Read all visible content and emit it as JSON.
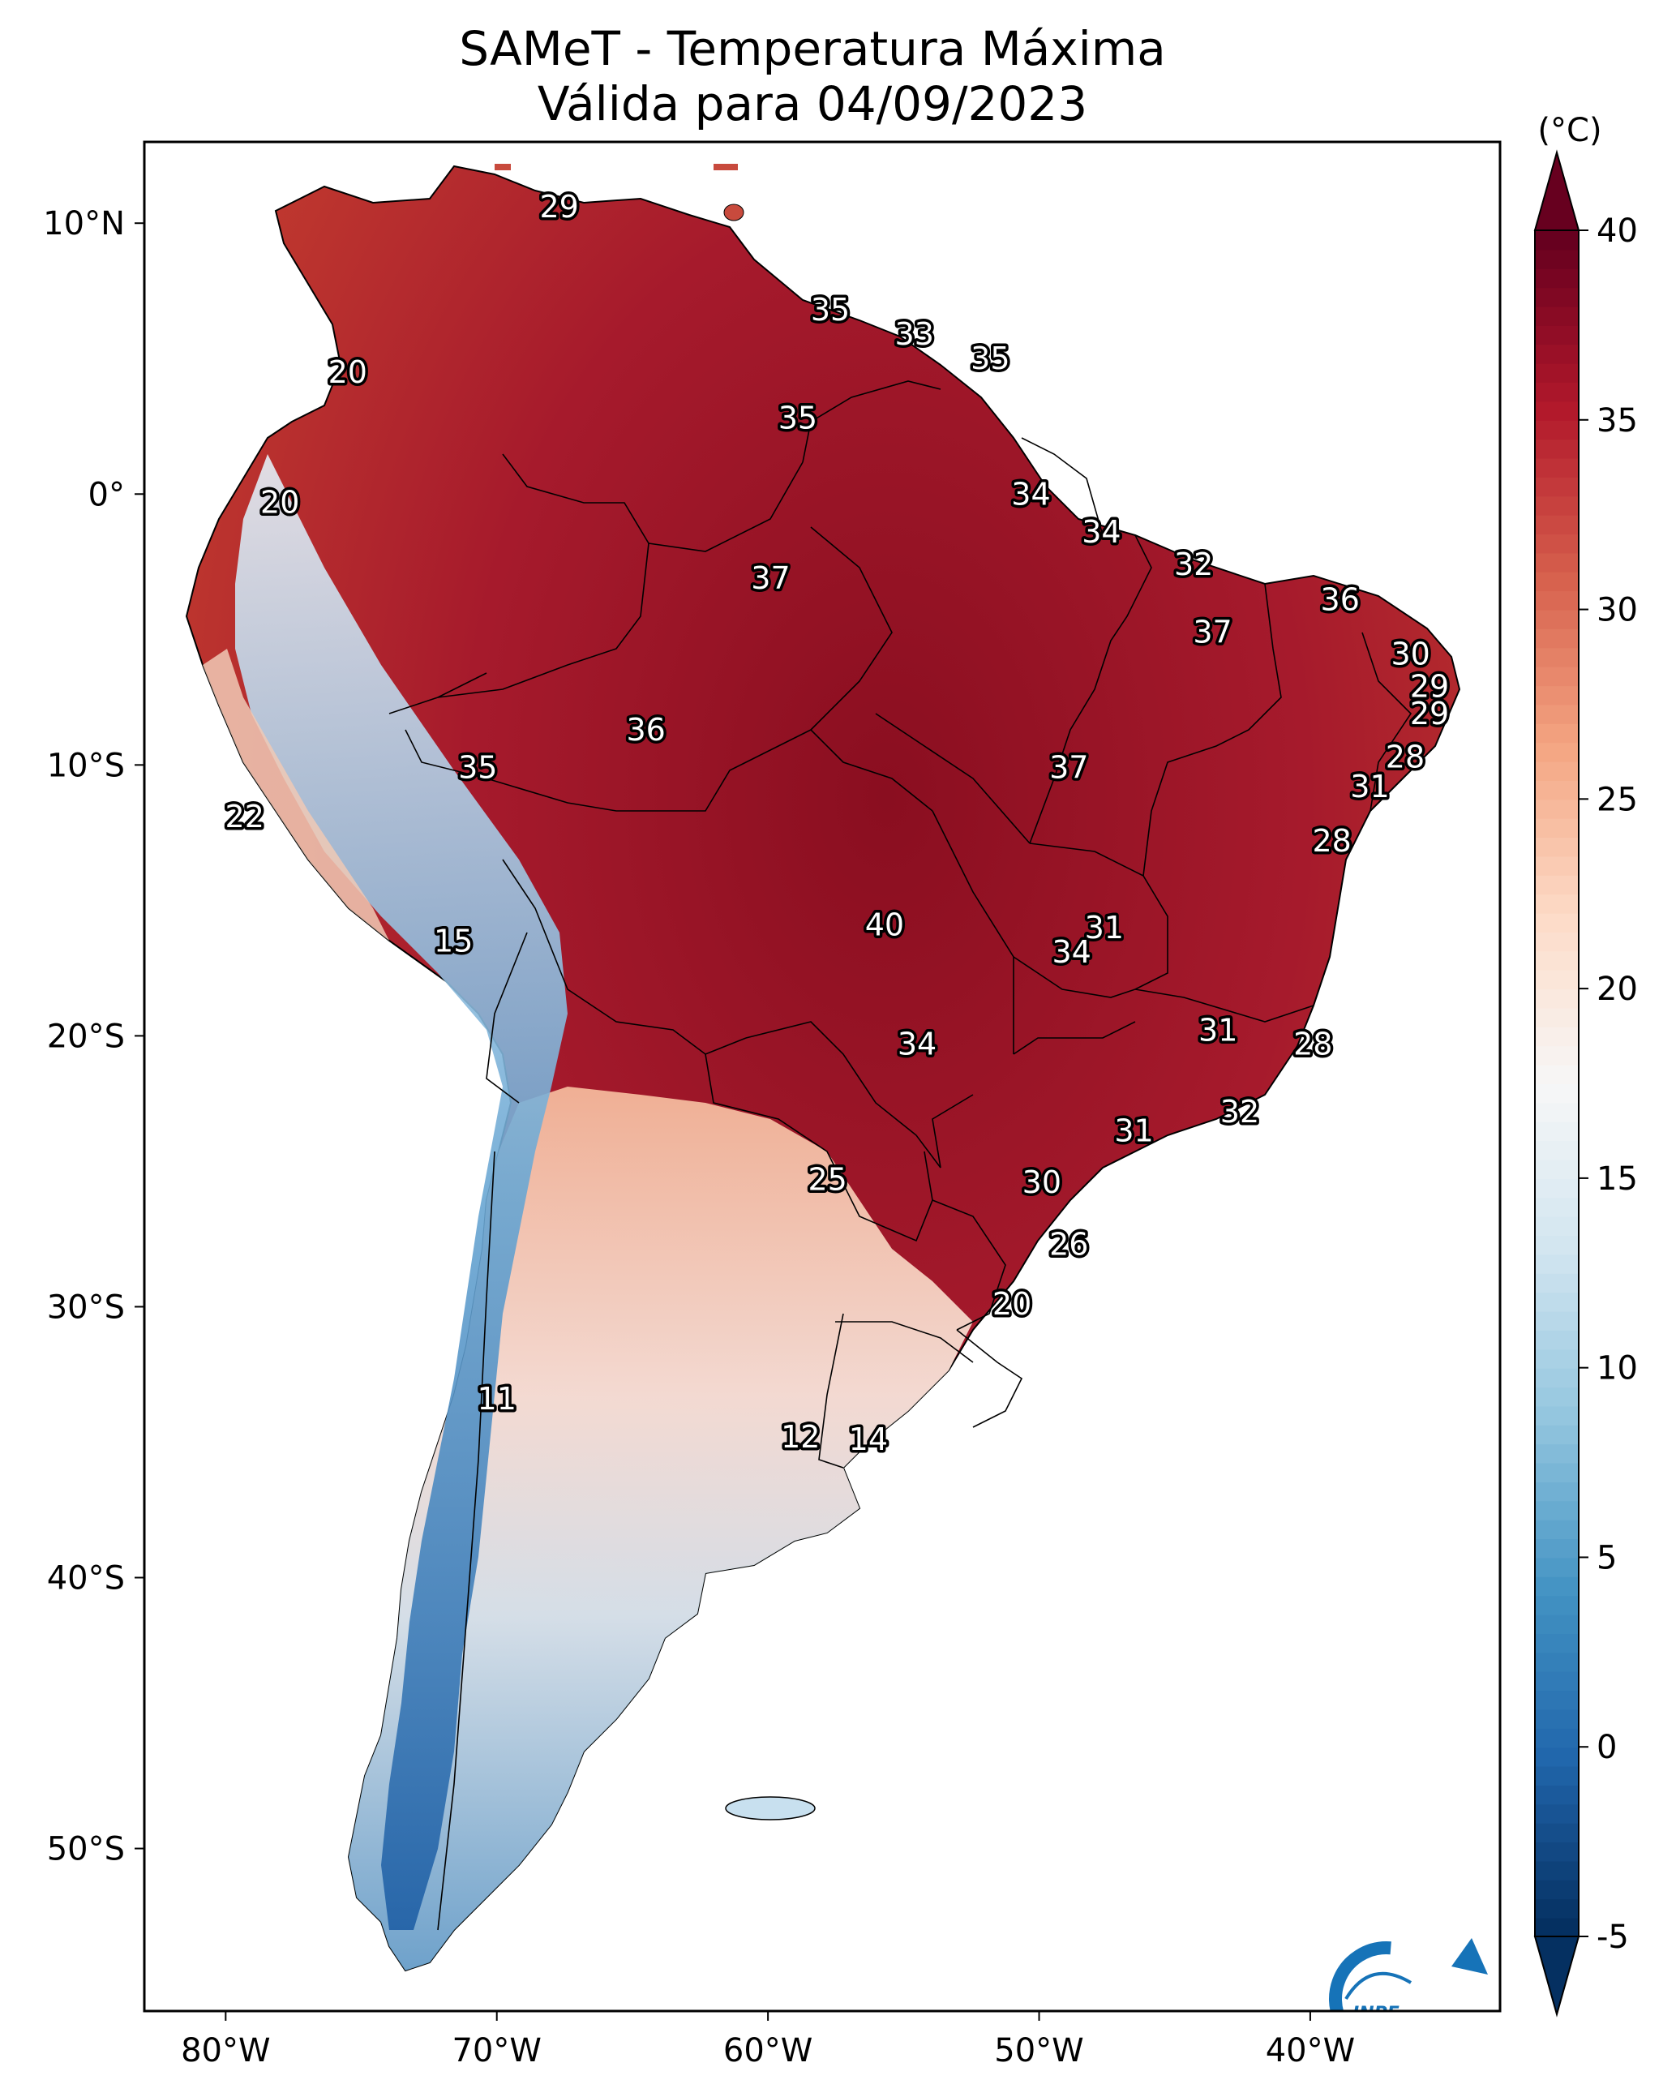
{
  "title": {
    "line1": "SAMeT - Temperatura Máxima",
    "line2": "Válida para 04/09/2023"
  },
  "map": {
    "lon_range": [
      -83,
      -33
    ],
    "lat_range": [
      -56,
      13
    ],
    "lon_ticks": [
      {
        "value": -80,
        "label": "80°W"
      },
      {
        "value": -70,
        "label": "70°W"
      },
      {
        "value": -60,
        "label": "60°W"
      },
      {
        "value": -50,
        "label": "50°W"
      },
      {
        "value": -40,
        "label": "40°W"
      }
    ],
    "lat_ticks": [
      {
        "value": 10,
        "label": "10°N"
      },
      {
        "value": 0,
        "label": "0°"
      },
      {
        "value": -10,
        "label": "10°S"
      },
      {
        "value": -20,
        "label": "20°S"
      },
      {
        "value": -30,
        "label": "30°S"
      },
      {
        "value": -40,
        "label": "40°S"
      },
      {
        "value": -50,
        "label": "50°S"
      }
    ],
    "temperature_labels": [
      {
        "lon": -67.7,
        "lat": 10.6,
        "value": "29"
      },
      {
        "lon": -75.5,
        "lat": 4.5,
        "value": "20"
      },
      {
        "lon": -78.0,
        "lat": -0.3,
        "value": "20"
      },
      {
        "lon": -57.7,
        "lat": 6.8,
        "value": "35"
      },
      {
        "lon": -54.6,
        "lat": 5.9,
        "value": "33"
      },
      {
        "lon": -51.8,
        "lat": 5.0,
        "value": "35"
      },
      {
        "lon": -58.9,
        "lat": 2.8,
        "value": "35"
      },
      {
        "lon": -50.3,
        "lat": 0.0,
        "value": "34"
      },
      {
        "lon": -47.7,
        "lat": -1.4,
        "value": "34"
      },
      {
        "lon": -44.3,
        "lat": -2.6,
        "value": "32"
      },
      {
        "lon": -38.9,
        "lat": -3.9,
        "value": "36"
      },
      {
        "lon": -59.9,
        "lat": -3.1,
        "value": "37"
      },
      {
        "lon": -43.6,
        "lat": -5.1,
        "value": "37"
      },
      {
        "lon": -36.3,
        "lat": -5.9,
        "value": "30"
      },
      {
        "lon": -35.6,
        "lat": -7.1,
        "value": "29"
      },
      {
        "lon": -35.6,
        "lat": -8.1,
        "value": "29"
      },
      {
        "lon": -36.5,
        "lat": -9.7,
        "value": "28"
      },
      {
        "lon": -37.8,
        "lat": -10.8,
        "value": "31"
      },
      {
        "lon": -39.2,
        "lat": -12.8,
        "value": "28"
      },
      {
        "lon": -64.5,
        "lat": -8.7,
        "value": "36"
      },
      {
        "lon": -70.7,
        "lat": -10.1,
        "value": "35"
      },
      {
        "lon": -48.9,
        "lat": -10.1,
        "value": "37"
      },
      {
        "lon": -79.3,
        "lat": -11.9,
        "value": "22"
      },
      {
        "lon": -71.6,
        "lat": -16.5,
        "value": "15"
      },
      {
        "lon": -55.7,
        "lat": -15.9,
        "value": "40"
      },
      {
        "lon": -47.6,
        "lat": -16.0,
        "value": "31"
      },
      {
        "lon": -48.8,
        "lat": -16.9,
        "value": "34"
      },
      {
        "lon": -43.4,
        "lat": -19.8,
        "value": "31"
      },
      {
        "lon": -54.5,
        "lat": -20.3,
        "value": "34"
      },
      {
        "lon": -39.9,
        "lat": -20.3,
        "value": "28"
      },
      {
        "lon": -42.6,
        "lat": -22.8,
        "value": "32"
      },
      {
        "lon": -46.5,
        "lat": -23.5,
        "value": "31"
      },
      {
        "lon": -57.8,
        "lat": -25.3,
        "value": "25"
      },
      {
        "lon": -49.9,
        "lat": -25.4,
        "value": "30"
      },
      {
        "lon": -48.9,
        "lat": -27.7,
        "value": "26"
      },
      {
        "lon": -51.0,
        "lat": -29.9,
        "value": "20"
      },
      {
        "lon": -70.0,
        "lat": -33.4,
        "value": "11"
      },
      {
        "lon": -58.8,
        "lat": -34.8,
        "value": "12"
      },
      {
        "lon": -56.3,
        "lat": -34.9,
        "value": "14"
      }
    ]
  },
  "colorbar": {
    "unit_label": "(°C)",
    "min": -5,
    "max": 40,
    "ticks": [
      {
        "value": 40,
        "label": "40"
      },
      {
        "value": 35,
        "label": "35"
      },
      {
        "value": 30,
        "label": "30"
      },
      {
        "value": 25,
        "label": "25"
      },
      {
        "value": 20,
        "label": "20"
      },
      {
        "value": 15,
        "label": "15"
      },
      {
        "value": 10,
        "label": "10"
      },
      {
        "value": 5,
        "label": "5"
      },
      {
        "value": 0,
        "label": "0"
      },
      {
        "value": -5,
        "label": "-5"
      }
    ],
    "colors": [
      "#053061",
      "#2166ac",
      "#4393c3",
      "#92c5de",
      "#d1e5f0",
      "#f7f7f7",
      "#fddbc7",
      "#f4a582",
      "#d6604d",
      "#b2182b",
      "#67001f"
    ]
  },
  "logo": {
    "text": "INPE",
    "blue": "#1673b8",
    "orange": "#f39200"
  }
}
